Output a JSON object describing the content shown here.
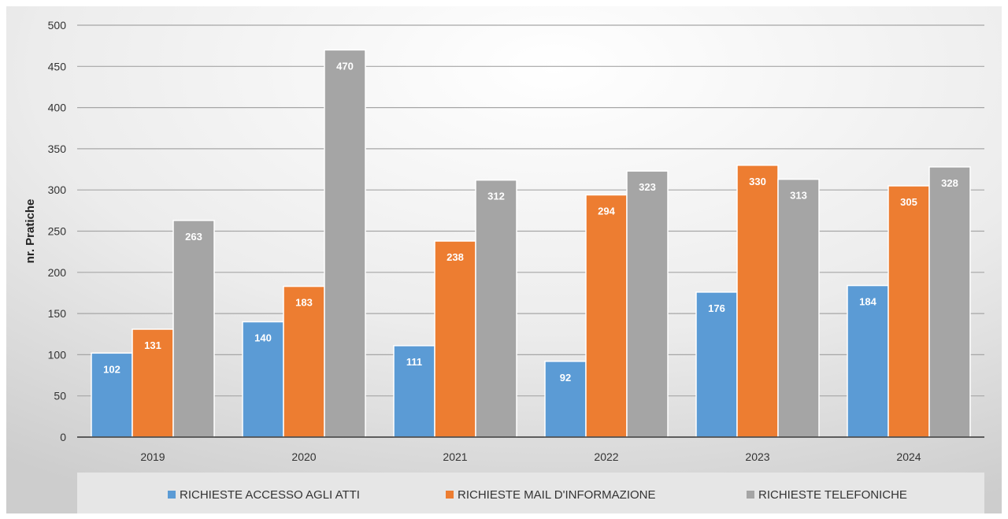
{
  "chart_data": {
    "type": "bar",
    "title": "",
    "xlabel": "",
    "ylabel": "nr. Pratiche",
    "ylim": [
      0,
      500
    ],
    "yticks": [
      0,
      50,
      100,
      150,
      200,
      250,
      300,
      350,
      400,
      450,
      500
    ],
    "categories": [
      "2019",
      "2020",
      "2021",
      "2022",
      "2023",
      "2024"
    ],
    "series": [
      {
        "name": "RICHIESTE ACCESSO AGLI ATTI",
        "color": "#5b9bd5",
        "values": [
          102,
          140,
          111,
          92,
          176,
          184
        ]
      },
      {
        "name": "RICHIESTE MAIL D'INFORMAZIONE",
        "color": "#ed7d31",
        "values": [
          131,
          183,
          238,
          294,
          330,
          305
        ]
      },
      {
        "name": "RICHIESTE TELEFONICHE",
        "color": "#a5a5a5",
        "values": [
          263,
          470,
          312,
          323,
          313,
          328
        ]
      }
    ],
    "grid": true,
    "data_labels": true,
    "legend_position": "bottom"
  }
}
